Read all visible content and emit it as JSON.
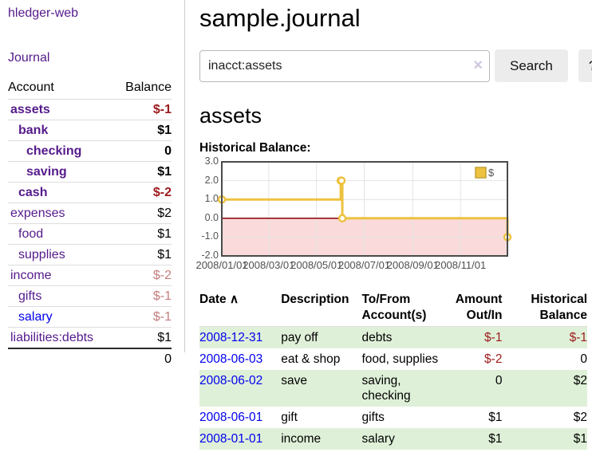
{
  "sidebar": {
    "brand": "hledger-web",
    "nav": {
      "journal": "Journal"
    },
    "accounts_table": {
      "header_account": "Account",
      "header_balance": "Balance",
      "rows": [
        {
          "name": "assets",
          "balance": "$-1"
        },
        {
          "name": "bank",
          "balance": "$1"
        },
        {
          "name": "checking",
          "balance": "0"
        },
        {
          "name": "saving",
          "balance": "$1"
        },
        {
          "name": "cash",
          "balance": "$-2"
        },
        {
          "name": "expenses",
          "balance": "$2"
        },
        {
          "name": "food",
          "balance": "$1"
        },
        {
          "name": "supplies",
          "balance": "$1"
        },
        {
          "name": "income",
          "balance": "$-2"
        },
        {
          "name": "gifts",
          "balance": "$-1"
        },
        {
          "name": "salary",
          "balance": "$-1"
        },
        {
          "name": "liabilities:debts",
          "balance": "$1"
        }
      ],
      "total": "0"
    }
  },
  "main": {
    "title": "sample.journal",
    "search": {
      "value": "inacct:assets",
      "clear_icon": "×",
      "search_button": "Search",
      "help_button": "?"
    },
    "account_heading": "assets",
    "chart_title": "Historical Balance:"
  },
  "chart_data": {
    "type": "line",
    "title": "Historical Balance",
    "step": true,
    "grid": true,
    "legend": {
      "position": "top-right",
      "entries": [
        "$"
      ]
    },
    "series": [
      {
        "name": "$",
        "color": "#edc240",
        "points": [
          [
            "2008-01-01",
            1
          ],
          [
            "2008-06-01",
            2
          ],
          [
            "2008-06-02",
            2
          ],
          [
            "2008-06-03",
            0
          ],
          [
            "2008-12-31",
            -1
          ]
        ]
      }
    ],
    "x_ticks": [
      "2008/01/01",
      "2008/03/01",
      "2008/05/01",
      "2008/07/01",
      "2008/09/01",
      "2008/11/01"
    ],
    "y_ticks": [
      3,
      2,
      1,
      0,
      -1,
      -2
    ],
    "xlim": [
      "2008-01-01",
      "2008-12-31"
    ],
    "ylim": [
      -2,
      3
    ],
    "colors": {
      "line": "#edc240",
      "negative_region": "#fadada",
      "zero_line": "#8b0000",
      "gridline": "#e4e4e4",
      "border": "#4a4a4a",
      "tick_label": "#545454"
    }
  },
  "register": {
    "headers": {
      "date": "Date",
      "sort_icon": "∧",
      "description": "Description",
      "accounts": "To/From Account(s)",
      "amount": "Amount Out/In",
      "balance": "Historical Balance"
    },
    "rows": [
      {
        "date": "2008-12-31",
        "description": "pay off",
        "accounts": "debts",
        "amount": "$-1",
        "balance": "$-1"
      },
      {
        "date": "2008-06-03",
        "description": "eat & shop",
        "accounts": "food, supplies",
        "amount": "$-2",
        "balance": "0"
      },
      {
        "date": "2008-06-02",
        "description": "save",
        "accounts": "saving, checking",
        "amount": "0",
        "balance": "$2"
      },
      {
        "date": "2008-06-01",
        "description": "gift",
        "accounts": "gifts",
        "amount": "$1",
        "balance": "$2"
      },
      {
        "date": "2008-01-01",
        "description": "income",
        "accounts": "salary",
        "amount": "$1",
        "balance": "$1"
      }
    ]
  }
}
